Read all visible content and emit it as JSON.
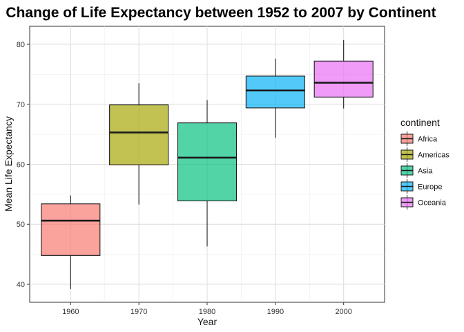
{
  "chart_data": {
    "type": "boxplot",
    "title": "Change of Life Expectancy between 1952 to 2007 by Continent",
    "xlabel": "Year",
    "ylabel": "Mean Life Expectancy",
    "xlim": [
      1954,
      2006
    ],
    "ylim": [
      37,
      83
    ],
    "x_ticks": [
      1960,
      1970,
      1980,
      1990,
      2000
    ],
    "y_ticks": [
      40,
      50,
      60,
      70,
      80
    ],
    "grid": true,
    "legend": {
      "title": "continent",
      "position": "right"
    },
    "series": [
      {
        "name": "Africa",
        "color": "#F8766D",
        "x": 1960,
        "min": 39.2,
        "q1": 44.8,
        "median": 50.6,
        "q3": 53.4,
        "max": 54.8
      },
      {
        "name": "Americas",
        "color": "#A3A500",
        "x": 1970,
        "min": 53.3,
        "q1": 59.9,
        "median": 65.3,
        "q3": 69.9,
        "max": 73.5
      },
      {
        "name": "Asia",
        "color": "#00BF7D",
        "x": 1980,
        "min": 46.3,
        "q1": 53.9,
        "median": 61.1,
        "q3": 66.9,
        "max": 70.7
      },
      {
        "name": "Europe",
        "color": "#00B0F6",
        "x": 1990,
        "min": 64.4,
        "q1": 69.4,
        "median": 72.3,
        "q3": 74.7,
        "max": 77.6
      },
      {
        "name": "Oceania",
        "color": "#E76BF3",
        "x": 2000,
        "min": 69.3,
        "q1": 71.2,
        "median": 73.6,
        "q3": 77.2,
        "max": 80.7
      }
    ]
  }
}
